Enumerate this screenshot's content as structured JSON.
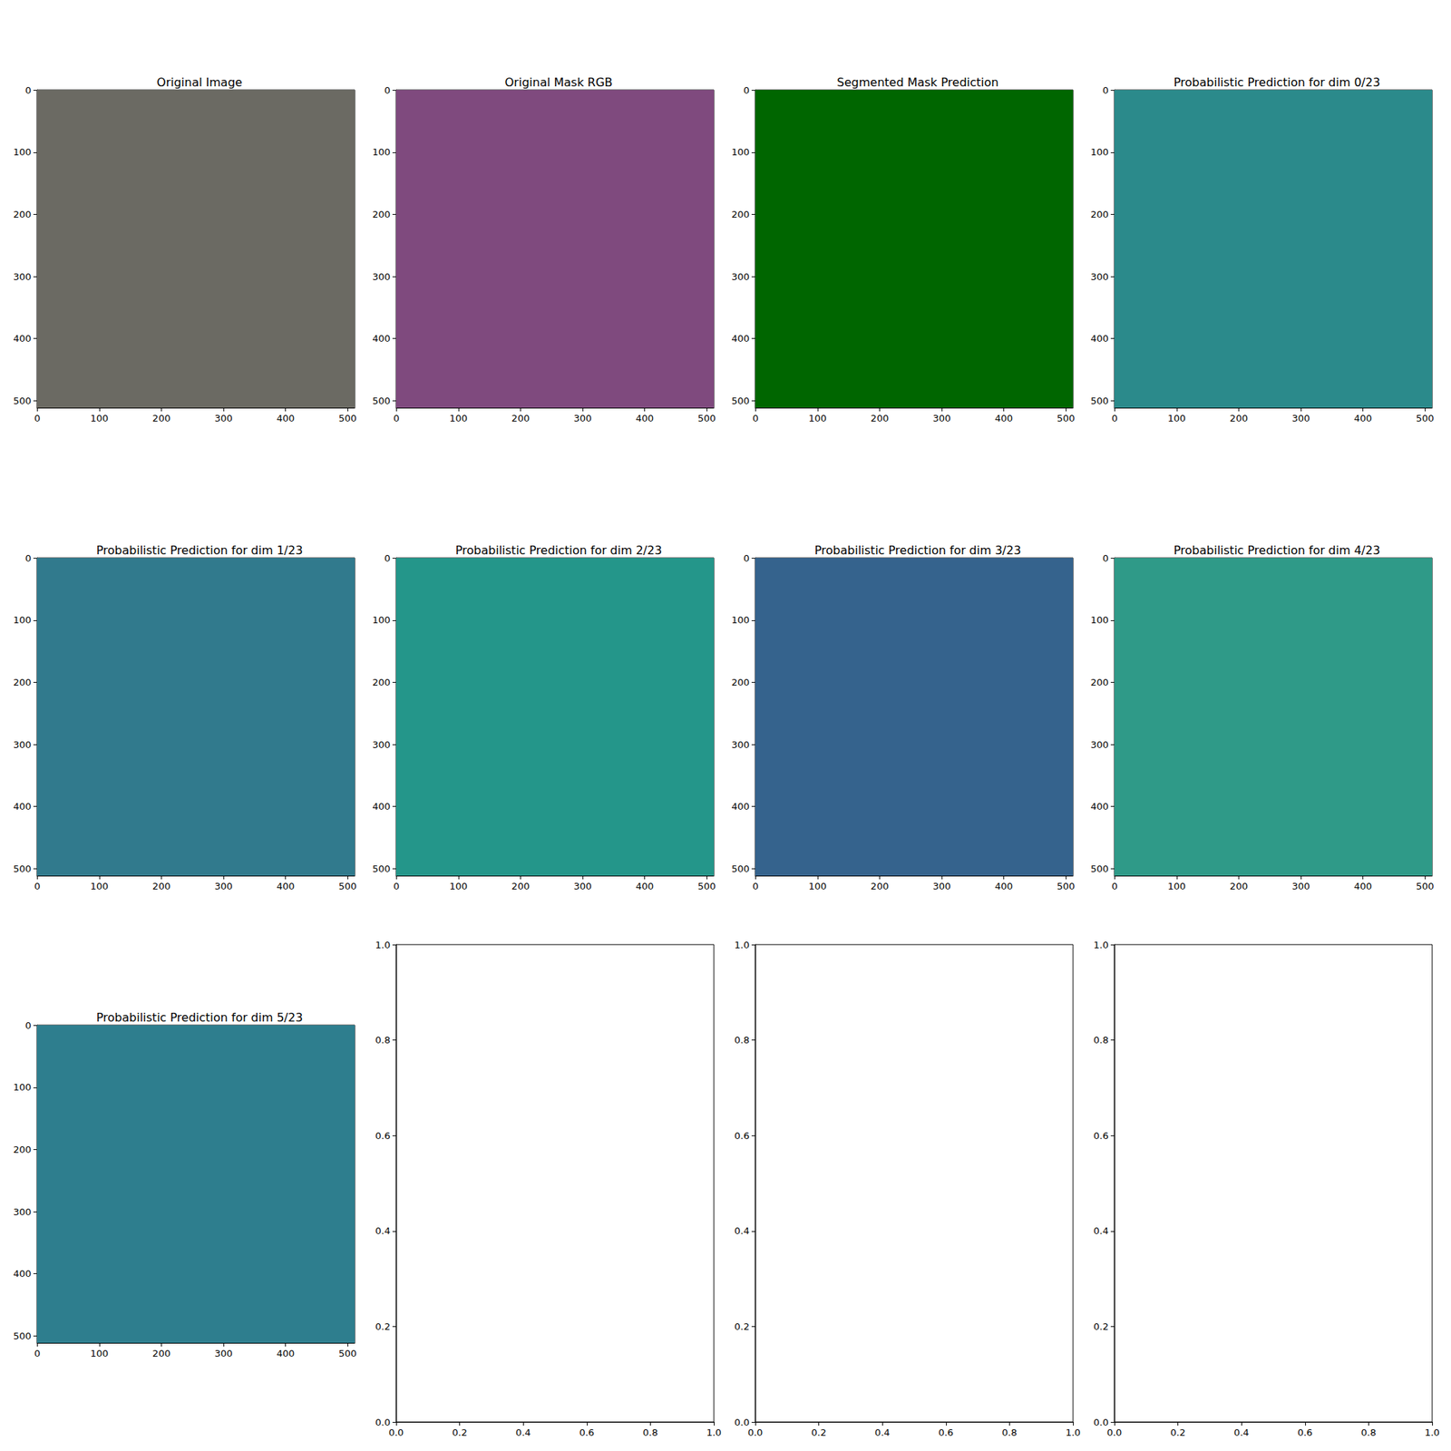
{
  "chart_data": [
    {
      "type": "image",
      "title": "Original Image",
      "color": "#6b6a63",
      "xlim": [
        -0.5,
        511.5
      ],
      "ylim": [
        511.5,
        -0.5
      ],
      "xticks": [
        0,
        100,
        200,
        300,
        400,
        500
      ],
      "yticks": [
        0,
        100,
        200,
        300,
        400,
        500
      ]
    },
    {
      "type": "image",
      "title": "Original Mask RGB",
      "color": "#7f4a7e",
      "xlim": [
        -0.5,
        511.5
      ],
      "ylim": [
        511.5,
        -0.5
      ],
      "xticks": [
        0,
        100,
        200,
        300,
        400,
        500
      ],
      "yticks": [
        0,
        100,
        200,
        300,
        400,
        500
      ]
    },
    {
      "type": "image",
      "title": "Segmented Mask Prediction",
      "color": "#006600",
      "xlim": [
        -0.5,
        511.5
      ],
      "ylim": [
        511.5,
        -0.5
      ],
      "xticks": [
        0,
        100,
        200,
        300,
        400,
        500
      ],
      "yticks": [
        0,
        100,
        200,
        300,
        400,
        500
      ]
    },
    {
      "type": "image",
      "title": "Probabilistic Prediction for dim 0/23",
      "color": "#2b8a8b",
      "xlim": [
        -0.5,
        511.5
      ],
      "ylim": [
        511.5,
        -0.5
      ],
      "xticks": [
        0,
        100,
        200,
        300,
        400,
        500
      ],
      "yticks": [
        0,
        100,
        200,
        300,
        400,
        500
      ]
    },
    {
      "type": "image",
      "title": "Probabilistic Prediction for dim 1/23",
      "color": "#317a8d",
      "xlim": [
        -0.5,
        511.5
      ],
      "ylim": [
        511.5,
        -0.5
      ],
      "xticks": [
        0,
        100,
        200,
        300,
        400,
        500
      ],
      "yticks": [
        0,
        100,
        200,
        300,
        400,
        500
      ]
    },
    {
      "type": "image",
      "title": "Probabilistic Prediction for dim 2/23",
      "color": "#24968a",
      "xlim": [
        -0.5,
        511.5
      ],
      "ylim": [
        511.5,
        -0.5
      ],
      "xticks": [
        0,
        100,
        200,
        300,
        400,
        500
      ],
      "yticks": [
        0,
        100,
        200,
        300,
        400,
        500
      ]
    },
    {
      "type": "image",
      "title": "Probabilistic Prediction for dim 3/23",
      "color": "#35638d",
      "xlim": [
        -0.5,
        511.5
      ],
      "ylim": [
        511.5,
        -0.5
      ],
      "xticks": [
        0,
        100,
        200,
        300,
        400,
        500
      ],
      "yticks": [
        0,
        100,
        200,
        300,
        400,
        500
      ]
    },
    {
      "type": "image",
      "title": "Probabilistic Prediction for dim 4/23",
      "color": "#2f9a88",
      "xlim": [
        -0.5,
        511.5
      ],
      "ylim": [
        511.5,
        -0.5
      ],
      "xticks": [
        0,
        100,
        200,
        300,
        400,
        500
      ],
      "yticks": [
        0,
        100,
        200,
        300,
        400,
        500
      ]
    },
    {
      "type": "image",
      "title": "Probabilistic Prediction for dim 5/23",
      "color": "#2e7e8e",
      "xlim": [
        -0.5,
        511.5
      ],
      "ylim": [
        511.5,
        -0.5
      ],
      "xticks": [
        0,
        100,
        200,
        300,
        400,
        500
      ],
      "yticks": [
        0,
        100,
        200,
        300,
        400,
        500
      ]
    },
    {
      "type": "empty",
      "xlim": [
        0,
        1
      ],
      "ylim": [
        0,
        1
      ],
      "xticks": [
        {
          "value": 0,
          "label": "0.0"
        },
        {
          "value": 0.2,
          "label": "0.2"
        },
        {
          "value": 0.4,
          "label": "0.4"
        },
        {
          "value": 0.6,
          "label": "0.6"
        },
        {
          "value": 0.8,
          "label": "0.8"
        },
        {
          "value": 1,
          "label": "1.0"
        }
      ],
      "yticks": [
        {
          "value": 0,
          "label": "0.0"
        },
        {
          "value": 0.2,
          "label": "0.2"
        },
        {
          "value": 0.4,
          "label": "0.4"
        },
        {
          "value": 0.6,
          "label": "0.6"
        },
        {
          "value": 0.8,
          "label": "0.8"
        },
        {
          "value": 1,
          "label": "1.0"
        }
      ]
    },
    {
      "type": "empty",
      "xlim": [
        0,
        1
      ],
      "ylim": [
        0,
        1
      ],
      "xticks": [
        {
          "value": 0,
          "label": "0.0"
        },
        {
          "value": 0.2,
          "label": "0.2"
        },
        {
          "value": 0.4,
          "label": "0.4"
        },
        {
          "value": 0.6,
          "label": "0.6"
        },
        {
          "value": 0.8,
          "label": "0.8"
        },
        {
          "value": 1,
          "label": "1.0"
        }
      ],
      "yticks": [
        {
          "value": 0,
          "label": "0.0"
        },
        {
          "value": 0.2,
          "label": "0.2"
        },
        {
          "value": 0.4,
          "label": "0.4"
        },
        {
          "value": 0.6,
          "label": "0.6"
        },
        {
          "value": 0.8,
          "label": "0.8"
        },
        {
          "value": 1,
          "label": "1.0"
        }
      ]
    },
    {
      "type": "empty",
      "xlim": [
        0,
        1
      ],
      "ylim": [
        0,
        1
      ],
      "xticks": [
        {
          "value": 0,
          "label": "0.0"
        },
        {
          "value": 0.2,
          "label": "0.2"
        },
        {
          "value": 0.4,
          "label": "0.4"
        },
        {
          "value": 0.6,
          "label": "0.6"
        },
        {
          "value": 0.8,
          "label": "0.8"
        },
        {
          "value": 1,
          "label": "1.0"
        }
      ],
      "yticks": [
        {
          "value": 0,
          "label": "0.0"
        },
        {
          "value": 0.2,
          "label": "0.2"
        },
        {
          "value": 0.4,
          "label": "0.4"
        },
        {
          "value": 0.6,
          "label": "0.6"
        },
        {
          "value": 0.8,
          "label": "0.8"
        },
        {
          "value": 1,
          "label": "1.0"
        }
      ]
    }
  ]
}
